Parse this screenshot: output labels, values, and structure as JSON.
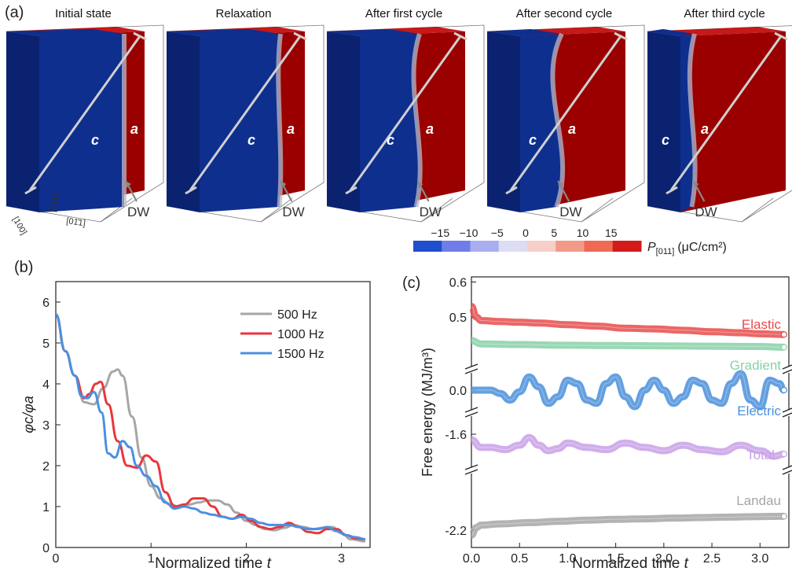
{
  "panel_a": {
    "label": "(a)",
    "stages": [
      {
        "title": "Initial state",
        "dw_frac": 0.0
      },
      {
        "title": "Relaxation",
        "dw_frac": 0.1
      },
      {
        "title": "After first cycle",
        "dw_frac": 0.4
      },
      {
        "title": "After second cycle",
        "dw_frac": 0.55
      },
      {
        "title": "After third cycle",
        "dw_frac": 0.82
      }
    ],
    "c_label": "c",
    "a_label": "a",
    "dw_label": "DW",
    "axis_100": "[100]",
    "axis_011": "[011]",
    "axis_011bar": "[01̄1]",
    "colors": {
      "blue": "#0e2f8e",
      "blue_side": "#0a2270",
      "red": "#9a0000",
      "red_top": "#c00000"
    },
    "colorbar": {
      "ticks": [
        "−15",
        "−10",
        "−5",
        "0",
        "5",
        "10",
        "15"
      ],
      "colors": [
        "#1f4ecf",
        "#6f7de8",
        "#a8aef0",
        "#dcdcf3",
        "#f7cfc9",
        "#f19a88",
        "#ee6a52",
        "#d21b1b"
      ],
      "label_p": "P",
      "label_sub": "[011]",
      "label_unit": "(μC/cm²)"
    }
  },
  "chart_data": [
    {
      "type": "line",
      "panel": "(b)",
      "xlabel": "Normalized time",
      "xlabel_var": "t",
      "ylabel": "φc/φa",
      "xlim": [
        0,
        3.3
      ],
      "ylim": [
        0,
        6.5
      ],
      "xticks": [
        "0",
        "1",
        "2",
        "3"
      ],
      "yticks": [
        "0",
        "1",
        "2",
        "3",
        "4",
        "5",
        "6"
      ],
      "legend": "top-right",
      "series": [
        {
          "name": "500 Hz",
          "color": "#a6a6a6",
          "x": [
            0,
            0.1,
            0.2,
            0.3,
            0.4,
            0.5,
            0.6,
            0.65,
            0.7,
            0.8,
            0.9,
            1.0,
            1.1,
            1.2,
            1.3,
            1.4,
            1.5,
            1.6,
            1.7,
            1.8,
            1.9,
            2.0,
            2.1,
            2.2,
            2.3,
            2.4,
            2.5,
            2.6,
            2.7,
            2.8,
            2.9,
            3.0,
            3.1,
            3.25
          ],
          "y": [
            5.7,
            4.8,
            4.2,
            3.55,
            3.5,
            3.9,
            4.3,
            4.35,
            4.2,
            3.2,
            2.2,
            1.5,
            1.2,
            1.05,
            1.0,
            1.05,
            1.1,
            1.15,
            1.15,
            1.05,
            0.85,
            0.65,
            0.55,
            0.45,
            0.42,
            0.48,
            0.55,
            0.5,
            0.45,
            0.48,
            0.5,
            0.35,
            0.2,
            0.15
          ]
        },
        {
          "name": "1000 Hz",
          "color": "#e8373c",
          "x": [
            0,
            0.1,
            0.2,
            0.3,
            0.35,
            0.42,
            0.47,
            0.55,
            0.65,
            0.75,
            0.85,
            0.95,
            1.05,
            1.15,
            1.25,
            1.35,
            1.45,
            1.55,
            1.65,
            1.75,
            1.85,
            1.95,
            2.05,
            2.15,
            2.25,
            2.35,
            2.45,
            2.55,
            2.65,
            2.75,
            2.85,
            2.95,
            3.05,
            3.15,
            3.25
          ],
          "y": [
            5.7,
            4.8,
            4.2,
            3.65,
            3.75,
            4.0,
            4.05,
            3.5,
            2.6,
            2.0,
            1.95,
            2.25,
            2.1,
            1.35,
            1.0,
            1.05,
            1.2,
            1.2,
            1.0,
            0.75,
            0.7,
            0.8,
            0.65,
            0.5,
            0.45,
            0.5,
            0.6,
            0.5,
            0.38,
            0.35,
            0.45,
            0.45,
            0.3,
            0.22,
            0.2
          ]
        },
        {
          "name": "1500 Hz",
          "color": "#4a90e2",
          "x": [
            0,
            0.1,
            0.2,
            0.27,
            0.33,
            0.4,
            0.48,
            0.55,
            0.62,
            0.7,
            0.78,
            0.85,
            0.95,
            1.05,
            1.15,
            1.25,
            1.35,
            1.45,
            1.55,
            1.65,
            1.75,
            1.85,
            1.95,
            2.05,
            2.15,
            2.25,
            2.35,
            2.45,
            2.55,
            2.65,
            2.75,
            2.85,
            2.95,
            3.05,
            3.15,
            3.25
          ],
          "y": [
            5.7,
            4.8,
            4.2,
            3.7,
            3.65,
            3.8,
            3.3,
            2.3,
            2.2,
            2.6,
            2.45,
            2.0,
            1.75,
            1.5,
            1.1,
            0.95,
            1.0,
            0.95,
            0.85,
            0.8,
            0.75,
            0.7,
            0.75,
            0.7,
            0.6,
            0.55,
            0.55,
            0.55,
            0.5,
            0.45,
            0.45,
            0.5,
            0.4,
            0.3,
            0.25,
            0.2
          ]
        }
      ]
    },
    {
      "type": "line",
      "panel": "(c)",
      "xlabel": "Normalized time",
      "xlabel_var": "t",
      "ylabel": "Free energy (MJ/m³)",
      "xlim": [
        0,
        3.3
      ],
      "xticks": [
        "0.0",
        "0.5",
        "1.0",
        "1.5",
        "2.0",
        "2.5",
        "3.0"
      ],
      "yticks": [
        "0.6",
        "0.5",
        "0.0",
        "-1.6",
        "-2.2"
      ],
      "axis_breaks": true,
      "series": [
        {
          "name": "Elastic",
          "color": "#e84b4b",
          "x": [
            0,
            0.05,
            0.1,
            0.3,
            0.5,
            0.7,
            1.0,
            1.3,
            1.6,
            1.9,
            2.2,
            2.5,
            2.8,
            3.0,
            3.25
          ],
          "y": [
            0.53,
            0.5,
            0.49,
            0.487,
            0.485,
            0.483,
            0.478,
            0.474,
            0.468,
            0.466,
            0.462,
            0.458,
            0.455,
            0.452,
            0.45
          ]
        },
        {
          "name": "Gradient",
          "color": "#87d1a7",
          "x": [
            0,
            0.1,
            0.5,
            1.0,
            1.5,
            2.0,
            2.5,
            3.0,
            3.25
          ],
          "y": [
            0.15,
            0.14,
            0.138,
            0.136,
            0.135,
            0.134,
            0.133,
            0.132,
            0.13
          ]
        },
        {
          "name": "Electric",
          "color": "#4a8fdb",
          "x": [
            0,
            0.1,
            0.2,
            0.3,
            0.4,
            0.5,
            0.6,
            0.7,
            0.8,
            0.9,
            1.0,
            1.1,
            1.2,
            1.3,
            1.4,
            1.5,
            1.6,
            1.7,
            1.8,
            1.9,
            2.0,
            2.1,
            2.2,
            2.3,
            2.4,
            2.5,
            2.6,
            2.7,
            2.8,
            2.9,
            3.0,
            3.1,
            3.2,
            3.25
          ],
          "y": [
            0.0,
            0.0,
            0.0,
            -0.01,
            -0.03,
            -0.005,
            0.04,
            0.01,
            -0.04,
            -0.02,
            0.03,
            0.02,
            -0.03,
            -0.04,
            0.02,
            0.04,
            -0.02,
            -0.05,
            0.0,
            0.03,
            0.0,
            -0.04,
            -0.02,
            0.03,
            0.02,
            -0.03,
            -0.04,
            0.02,
            0.05,
            -0.03,
            -0.05,
            0.03,
            0.02,
            0.0
          ]
        },
        {
          "name": "Total",
          "color": "#c8a0e6",
          "x": [
            0,
            0.1,
            0.2,
            0.35,
            0.5,
            0.6,
            0.7,
            0.8,
            0.9,
            1.0,
            1.2,
            1.4,
            1.6,
            1.8,
            2.0,
            2.2,
            2.4,
            2.6,
            2.8,
            3.0,
            3.15,
            3.25
          ],
          "y": [
            -1.65,
            -1.72,
            -1.72,
            -1.74,
            -1.7,
            -1.63,
            -1.7,
            -1.75,
            -1.73,
            -1.68,
            -1.72,
            -1.74,
            -1.68,
            -1.72,
            -1.75,
            -1.7,
            -1.74,
            -1.76,
            -1.7,
            -1.75,
            -1.8,
            -1.78
          ]
        },
        {
          "name": "Landau",
          "color": "#a6a6a6",
          "x": [
            0,
            0.05,
            0.1,
            0.3,
            0.6,
            0.9,
            1.2,
            1.5,
            1.8,
            2.1,
            2.4,
            2.7,
            3.0,
            3.25
          ],
          "y": [
            -2.22,
            -2.19,
            -2.18,
            -2.175,
            -2.17,
            -2.165,
            -2.16,
            -2.157,
            -2.155,
            -2.152,
            -2.15,
            -2.148,
            -2.146,
            -2.145
          ]
        }
      ]
    }
  ]
}
